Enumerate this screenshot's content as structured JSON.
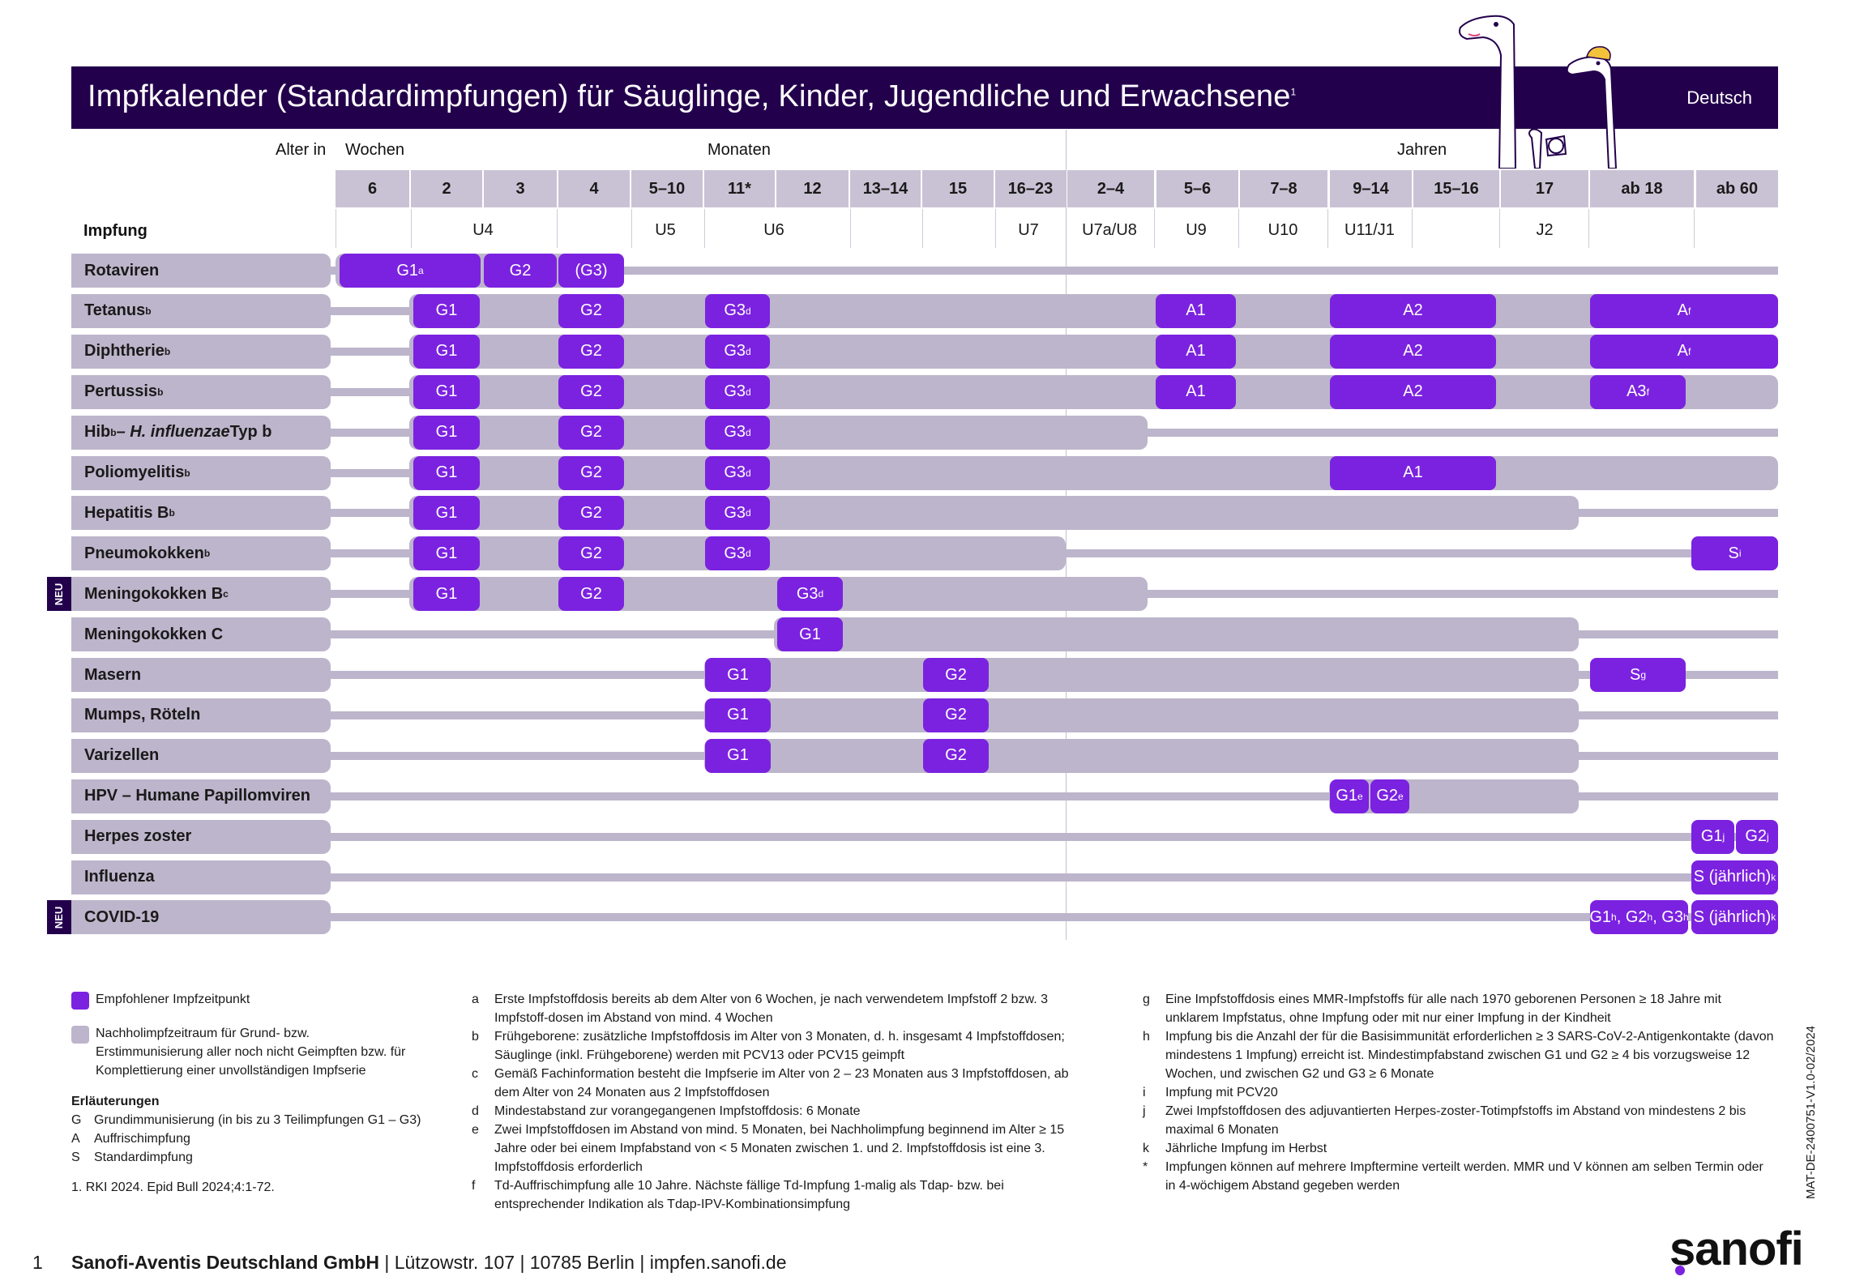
{
  "title": "Impfkalender (Standardimpfungen) für Säuglinge, Kinder, Jugendliche und Erwachsene",
  "title_sup": "1",
  "language": "Deutsch",
  "header": {
    "alter_in": "Alter in",
    "wochen": "Wochen",
    "monaten": "Monaten",
    "jahren": "Jahren",
    "impfung": "Impfung"
  },
  "ages": [
    "6",
    "2",
    "3",
    "4",
    "5–10",
    "11*",
    "12",
    "13–14",
    "15",
    "16–23",
    "2–4",
    "5–6",
    "7–8",
    "9–14",
    "15–16",
    "17",
    "ab 18",
    "ab 60"
  ],
  "checkups": [
    "U4",
    "U5",
    "U6",
    "U7",
    "U7a/U8",
    "U9",
    "U10",
    "U11/J1",
    "J2"
  ],
  "rows": [
    {
      "label": "Rotaviren",
      "sup": "",
      "italic": "",
      "suffix": "",
      "neu": false
    },
    {
      "label": "Tetanus",
      "sup": "b",
      "italic": "",
      "suffix": "",
      "neu": false
    },
    {
      "label": "Diphtherie",
      "sup": "b",
      "italic": "",
      "suffix": "",
      "neu": false
    },
    {
      "label": "Pertussis",
      "sup": "b",
      "italic": "",
      "suffix": "",
      "neu": false
    },
    {
      "label": "Hib",
      "sup": "b",
      "italic": " – H. influenzae",
      "suffix": " Typ b",
      "neu": false
    },
    {
      "label": "Poliomyelitis",
      "sup": "b",
      "italic": "",
      "suffix": "",
      "neu": false
    },
    {
      "label": "Hepatitis B",
      "sup": "b",
      "italic": "",
      "suffix": "",
      "neu": false
    },
    {
      "label": "Pneumokokken",
      "sup": "b",
      "italic": "",
      "suffix": "",
      "neu": false
    },
    {
      "label": "Meningokokken B",
      "sup": "c",
      "italic": "",
      "suffix": "",
      "neu": true
    },
    {
      "label": "Meningokokken C",
      "sup": "",
      "italic": "",
      "suffix": "",
      "neu": false
    },
    {
      "label": "Masern",
      "sup": "",
      "italic": "",
      "suffix": "",
      "neu": false
    },
    {
      "label": "Mumps, Röteln",
      "sup": "",
      "italic": "",
      "suffix": "",
      "neu": false
    },
    {
      "label": "Varizellen",
      "sup": "",
      "italic": "",
      "suffix": "",
      "neu": false
    },
    {
      "label": "HPV – Humane Papillomviren",
      "sup": "",
      "italic": "",
      "suffix": "",
      "neu": false
    },
    {
      "label": "Herpes zoster",
      "sup": "",
      "italic": "",
      "suffix": "",
      "neu": false
    },
    {
      "label": "Influenza",
      "sup": "",
      "italic": "",
      "suffix": "",
      "neu": false
    },
    {
      "label": "COVID-19",
      "sup": "",
      "italic": "",
      "suffix": "",
      "neu": true
    }
  ],
  "neu_label": "NEU",
  "pills": {
    "rota": [
      {
        "t": "G1",
        "s": "a"
      },
      {
        "t": "G2",
        "s": ""
      },
      {
        "t": "(G3)",
        "s": ""
      }
    ],
    "tetanus": [
      {
        "t": "G1",
        "s": ""
      },
      {
        "t": "G2",
        "s": ""
      },
      {
        "t": "G3",
        "s": "d"
      },
      {
        "t": "A1",
        "s": ""
      },
      {
        "t": "A2",
        "s": ""
      },
      {
        "t": "A",
        "s": "f"
      }
    ],
    "diph": [
      {
        "t": "G1",
        "s": ""
      },
      {
        "t": "G2",
        "s": ""
      },
      {
        "t": "G3",
        "s": "d"
      },
      {
        "t": "A1",
        "s": ""
      },
      {
        "t": "A2",
        "s": ""
      },
      {
        "t": "A",
        "s": "f"
      }
    ],
    "pert": [
      {
        "t": "G1",
        "s": ""
      },
      {
        "t": "G2",
        "s": ""
      },
      {
        "t": "G3",
        "s": "d"
      },
      {
        "t": "A1",
        "s": ""
      },
      {
        "t": "A2",
        "s": ""
      },
      {
        "t": "A3",
        "s": "f"
      }
    ],
    "hib": [
      {
        "t": "G1",
        "s": ""
      },
      {
        "t": "G2",
        "s": ""
      },
      {
        "t": "G3",
        "s": "d"
      }
    ],
    "polio": [
      {
        "t": "G1",
        "s": ""
      },
      {
        "t": "G2",
        "s": ""
      },
      {
        "t": "G3",
        "s": "d"
      },
      {
        "t": "A1",
        "s": ""
      }
    ],
    "hepb": [
      {
        "t": "G1",
        "s": ""
      },
      {
        "t": "G2",
        "s": ""
      },
      {
        "t": "G3",
        "s": "d"
      }
    ],
    "pneumo": [
      {
        "t": "G1",
        "s": ""
      },
      {
        "t": "G2",
        "s": ""
      },
      {
        "t": "G3",
        "s": "d"
      },
      {
        "t": "S",
        "s": "i"
      }
    ],
    "menb": [
      {
        "t": "G1",
        "s": ""
      },
      {
        "t": "G2",
        "s": ""
      },
      {
        "t": "G3",
        "s": "d"
      }
    ],
    "menc": [
      {
        "t": "G1",
        "s": ""
      }
    ],
    "masern": [
      {
        "t": "G1",
        "s": ""
      },
      {
        "t": "G2",
        "s": ""
      },
      {
        "t": "S",
        "s": "g"
      }
    ],
    "mumps": [
      {
        "t": "G1",
        "s": ""
      },
      {
        "t": "G2",
        "s": ""
      }
    ],
    "vari": [
      {
        "t": "G1",
        "s": ""
      },
      {
        "t": "G2",
        "s": ""
      }
    ],
    "hpv": [
      {
        "t": "G1",
        "s": "e"
      },
      {
        "t": "G2",
        "s": "e"
      }
    ],
    "herpes": [
      {
        "t": "G1",
        "s": "j"
      },
      {
        "t": "G2",
        "s": "j"
      }
    ],
    "influenza": [
      {
        "t": "S (jährlich)",
        "s": "k"
      }
    ],
    "covid": [
      {
        "t": "G1",
        "s": "h"
      },
      {
        "t": ", G2",
        "s": "h"
      },
      {
        "t": ", G3",
        "s": "h"
      },
      {
        "t": "S (jährlich)",
        "s": "k"
      }
    ]
  },
  "legend": {
    "recommended": "Empfohlener Impfzeitpunkt",
    "catchup": "Nachholimpfzeitraum für Grund- bzw. Erstimmunisierung aller noch nicht Geimpften bzw. für Komplettierung einer unvollständigen Impfserie",
    "expl_title": "Erläuterungen",
    "expl": [
      {
        "k": "G",
        "t": "Grundimmunisierung (in bis zu 3 Teilimpfungen G1 – G3)"
      },
      {
        "k": "A",
        "t": "Auffrischimpfung"
      },
      {
        "k": "S",
        "t": "Standardimpfung"
      }
    ],
    "reference": "1. RKI 2024. Epid Bull 2024;4:1-72."
  },
  "footnotes_left": [
    {
      "k": "a",
      "t": "Erste Impfstoffdosis bereits ab dem Alter von 6 Wochen, je nach verwendetem Impfstoff 2 bzw. 3 Impfstoff-dosen im Abstand von mind. 4 Wochen"
    },
    {
      "k": "b",
      "t": "Frühgeborene: zusätzliche Impfstoffdosis im Alter von 3 Monaten, d. h. insgesamt 4 Impfstoffdosen; Säuglinge (inkl. Frühgeborene) werden mit PCV13 oder PCV15 geimpft"
    },
    {
      "k": "c",
      "t": "Gemäß Fachinformation besteht die Impfserie im Alter von 2 – 23 Monaten aus 3 Impfstoffdosen, ab dem Alter von 24 Monaten aus 2 Impfstoffdosen"
    },
    {
      "k": "d",
      "t": "Mindestabstand zur vorangegangenen Impfstoffdosis: 6 Monate"
    },
    {
      "k": "e",
      "t": "Zwei Impfstoffdosen im Abstand von mind. 5 Monaten, bei Nachholimpfung beginnend im Alter ≥ 15 Jahre oder bei einem Impfabstand von < 5 Monaten zwischen 1. und 2. Impfstoffdosis ist eine 3. Impfstoffdosis erforderlich"
    },
    {
      "k": "f",
      "t": "Td-Auffrischimpfung alle 10 Jahre. Nächste fällige Td-Impfung 1-malig als Tdap- bzw. bei entsprechender Indikation als Tdap-IPV-Kombinationsimpfung"
    }
  ],
  "footnotes_right": [
    {
      "k": "g",
      "t": "Eine Impfstoffdosis eines MMR-Impfstoffs für alle nach 1970 geborenen Personen ≥ 18 Jahre mit unklarem Impfstatus, ohne Impfung oder mit nur einer Impfung in der Kindheit"
    },
    {
      "k": "h",
      "t": "Impfung bis die Anzahl der für die Basisimmunität erforderlichen ≥ 3 SARS-CoV-2-Antigenkontakte (davon mindestens 1 Impfung) erreicht ist. Mindestimpfabstand zwischen G1 und G2 ≥ 4 bis vorzugsweise 12 Wochen, und zwischen G2 und G3 ≥ 6 Monate"
    },
    {
      "k": "i",
      "t": "Impfung mit PCV20"
    },
    {
      "k": "j",
      "t": "Zwei Impfstoffdosen des adjuvantierten Herpes-zoster-Totimpfstoffs im Abstand von mindestens 2 bis maximal 6 Monaten"
    },
    {
      "k": "k",
      "t": "Jährliche Impfung im Herbst"
    },
    {
      "k": "*",
      "t": "Impfungen können auf mehrere Impftermine verteilt werden. MMR und V können am selben Termin oder in 4-wöchigem Abstand gegeben werden"
    }
  ],
  "side_code": "MAT-DE-2400751-V1.0-02/2024",
  "page_number": "1",
  "footer_company": "Sanofi-Aventis Deutschland GmbH",
  "footer_rest": " | Lützowstr. 107 | 10785 Berlin | impfen.sanofi.de",
  "logo": "sanofi",
  "colors": {
    "navy": "#23004c",
    "purple": "#7b22e0",
    "grey": "#bdb5cb"
  }
}
